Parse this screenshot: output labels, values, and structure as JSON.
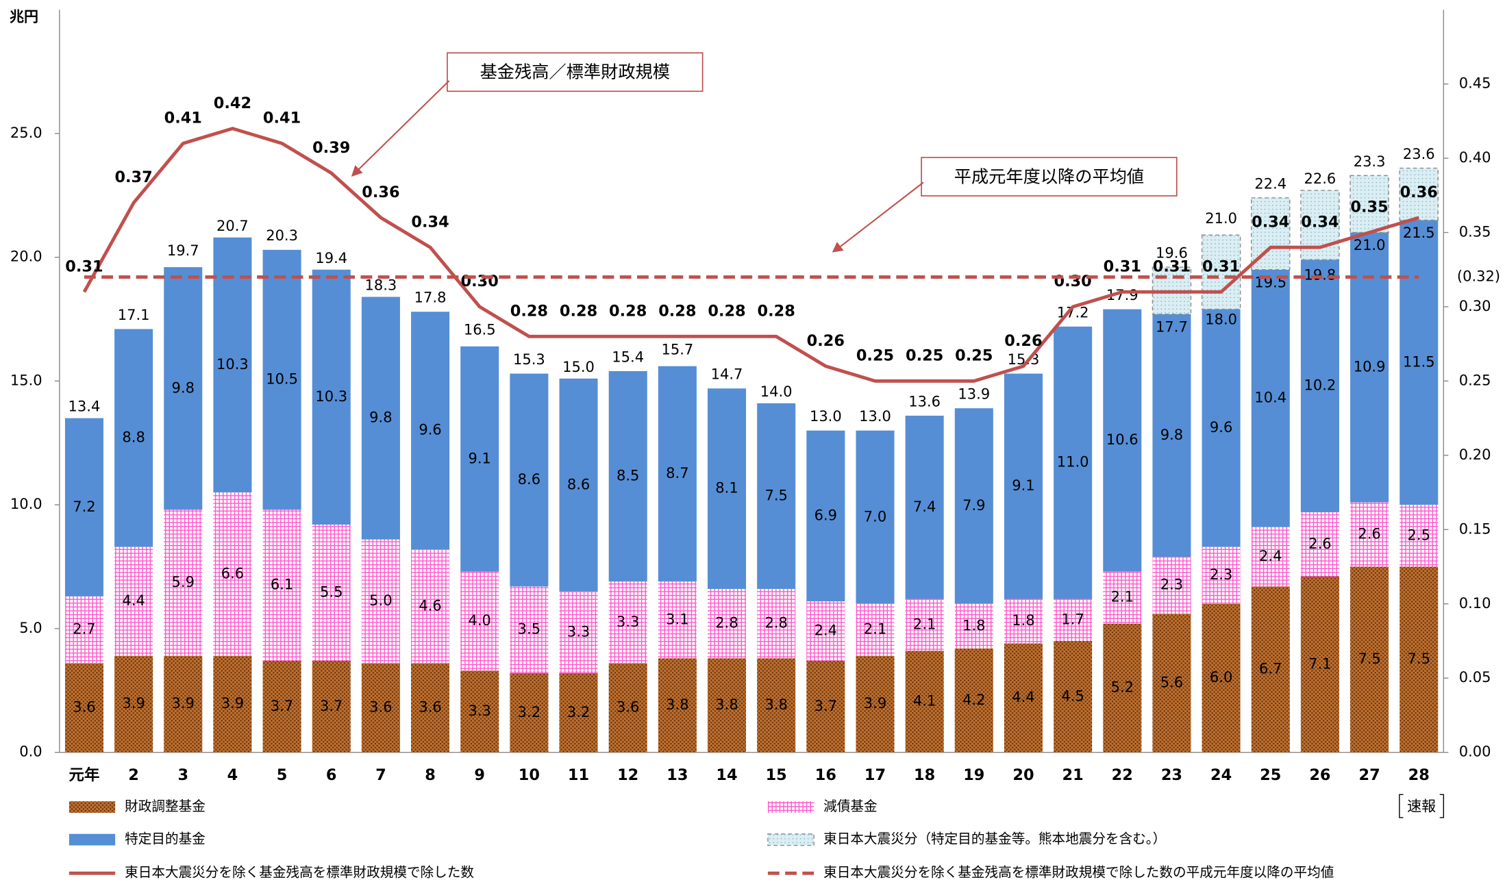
{
  "chart_data": {
    "type": "stacked-bar-line",
    "y_unit": "兆円",
    "categories": [
      "元年",
      "2",
      "3",
      "4",
      "5",
      "6",
      "7",
      "8",
      "9",
      "10",
      "11",
      "12",
      "13",
      "14",
      "15",
      "16",
      "17",
      "18",
      "19",
      "20",
      "21",
      "22",
      "23",
      "24",
      "25",
      "26",
      "27",
      "28"
    ],
    "note": "速報",
    "annotations": [
      "基金残高／標準財政規模",
      "平成元年度以降の平均値"
    ],
    "ylim": [
      0,
      30
    ],
    "yticks": [
      {
        "value": 0,
        "label": "0.0"
      },
      {
        "value": 5,
        "label": "5.0"
      },
      {
        "value": 10,
        "label": "10.0"
      },
      {
        "value": 15,
        "label": "15.0"
      },
      {
        "value": 20,
        "label": "20.0"
      },
      {
        "value": 25,
        "label": "25.0"
      }
    ],
    "y2lim": [
      0,
      0.5
    ],
    "y2ticks": [
      {
        "value": 0,
        "label": "0.00"
      },
      {
        "value": 0.05,
        "label": "0.05"
      },
      {
        "value": 0.1,
        "label": "0.10"
      },
      {
        "value": 0.15,
        "label": "0.15"
      },
      {
        "value": 0.2,
        "label": "0.20"
      },
      {
        "value": 0.25,
        "label": "0.25"
      },
      {
        "value": 0.3,
        "label": "0.30"
      },
      {
        "value": 0.35,
        "label": "0.35"
      },
      {
        "value": 0.4,
        "label": "0.40"
      },
      {
        "value": 0.45,
        "label": "0.45"
      }
    ],
    "series": [
      {
        "name": "財政調整基金",
        "color": "#c0722f",
        "fill_pattern": "dots",
        "values": [
          3.6,
          3.9,
          3.9,
          3.9,
          3.7,
          3.7,
          3.6,
          3.6,
          3.3,
          3.2,
          3.2,
          3.6,
          3.8,
          3.8,
          3.8,
          3.7,
          3.9,
          4.1,
          4.2,
          4.4,
          4.5,
          5.2,
          5.6,
          6.0,
          6.7,
          7.1,
          7.5,
          7.5
        ],
        "value_labels": [
          "3.6",
          "3.9",
          "3.9",
          "3.9",
          "3.7",
          "3.7",
          "3.6",
          "3.6",
          "3.3",
          "3.2",
          "3.2",
          "3.6",
          "3.8",
          "3.8",
          "3.8",
          "3.7",
          "3.9",
          "4.1",
          "4.2",
          "4.4",
          "4.5",
          "5.2",
          "5.6",
          "6.0",
          "6.7",
          "7.1",
          "7.5",
          "7.5"
        ]
      },
      {
        "name": "減債基金",
        "color": "#ff55cc",
        "fill_pattern": "grid",
        "values": [
          2.7,
          4.4,
          5.9,
          6.6,
          6.1,
          5.5,
          5.0,
          4.6,
          4.0,
          3.5,
          3.3,
          3.3,
          3.1,
          2.8,
          2.8,
          2.4,
          2.1,
          2.1,
          1.8,
          1.8,
          1.7,
          2.1,
          2.3,
          2.3,
          2.4,
          2.6,
          2.6,
          2.5
        ],
        "value_labels": [
          "2.7",
          "4.4",
          "5.9",
          "6.6",
          "6.1",
          "5.5",
          "5.0",
          "4.6",
          "4.0",
          "3.5",
          "3.3",
          "3.3",
          "3.1",
          "2.8",
          "2.8",
          "2.4",
          "2.1",
          "2.1",
          "1.8",
          "1.8",
          "1.7",
          "2.1",
          "2.3",
          "2.3",
          "2.4",
          "2.6",
          "2.6",
          "2.5"
        ]
      },
      {
        "name": "特定目的基金",
        "color": "#558ed5",
        "fill_pattern": "solid",
        "values": [
          7.2,
          8.8,
          9.8,
          10.3,
          10.5,
          10.3,
          9.8,
          9.6,
          9.1,
          8.6,
          8.6,
          8.5,
          8.7,
          8.1,
          7.5,
          6.9,
          7.0,
          7.4,
          7.9,
          9.1,
          11.0,
          10.6,
          9.8,
          9.6,
          10.4,
          10.2,
          10.9,
          11.5
        ],
        "value_labels": [
          "7.2",
          "8.8",
          "9.8",
          "10.3",
          "10.5",
          "10.3",
          "9.8",
          "9.6",
          "9.1",
          "8.6",
          "8.6",
          "8.5",
          "8.7",
          "8.1",
          "7.5",
          "6.9",
          "7.0",
          "7.4",
          "7.9",
          "9.1",
          "11.0",
          "10.6",
          "9.8",
          "9.6",
          "10.4",
          "10.2",
          "10.9",
          "11.5"
        ]
      },
      {
        "name": "東日本大震災分（特定目的基金等。熊本地震分を含む。）",
        "color": "#daeef3",
        "fill_pattern": "dots-light",
        "values": [
          null,
          null,
          null,
          null,
          null,
          null,
          null,
          null,
          null,
          null,
          null,
          null,
          null,
          null,
          null,
          null,
          null,
          null,
          null,
          null,
          null,
          null,
          1.9,
          3.0,
          2.9,
          2.8,
          2.3,
          2.1
        ]
      },
      {
        "name": "東日本大震災分を除く基金残高を標準財政規模で除した数",
        "color": "#c0504d",
        "axis": "y2",
        "kind": "line",
        "values": [
          0.31,
          0.37,
          0.41,
          0.42,
          0.41,
          0.39,
          0.36,
          0.34,
          0.3,
          0.28,
          0.28,
          0.28,
          0.28,
          0.28,
          0.28,
          0.26,
          0.25,
          0.25,
          0.25,
          0.26,
          0.3,
          0.31,
          0.31,
          0.31,
          0.34,
          0.34,
          0.35,
          0.36
        ],
        "value_labels": [
          "0.31",
          "0.37",
          "0.41",
          "0.42",
          "0.41",
          "0.39",
          "0.36",
          "0.34",
          "0.30",
          "0.28",
          "0.28",
          "0.28",
          "0.28",
          "0.28",
          "0.28",
          "0.26",
          "0.25",
          "0.25",
          "0.25",
          "0.26",
          "0.30",
          "0.31",
          "0.31",
          "0.31",
          "0.34",
          "0.34",
          "0.35",
          "0.36"
        ]
      },
      {
        "name": "東日本大震災分を除く基金残高を標準財政規模で除した数の平成元年度以降の平均値",
        "color": "#c0504d",
        "axis": "y2",
        "kind": "dashed-line",
        "value": 0.32,
        "label": "(0.32)"
      }
    ],
    "totals": {
      "values": [
        13.4,
        17.1,
        19.7,
        20.7,
        20.3,
        19.4,
        18.3,
        17.8,
        16.5,
        15.3,
        15.0,
        15.4,
        15.7,
        14.7,
        14.0,
        13.0,
        13.0,
        13.6,
        13.9,
        15.3,
        17.2,
        17.9,
        17.7,
        18.0,
        19.5,
        19.8,
        21.0,
        21.5
      ],
      "value_labels": [
        "13.4",
        "17.1",
        "19.7",
        "20.7",
        "20.3",
        "19.4",
        "18.3",
        "17.8",
        "16.5",
        "15.3",
        "15.0",
        "15.4",
        "15.7",
        "14.7",
        "14.0",
        "13.0",
        "13.0",
        "13.6",
        "13.9",
        "15.3",
        "17.2",
        "17.9",
        "17.7",
        "18.0",
        "19.5",
        "19.8",
        "21.0",
        "21.5"
      ]
    },
    "totals_with_disaster": {
      "values": [
        null,
        null,
        null,
        null,
        null,
        null,
        null,
        null,
        null,
        null,
        null,
        null,
        null,
        null,
        null,
        null,
        null,
        null,
        null,
        null,
        null,
        null,
        19.6,
        21.0,
        22.4,
        22.6,
        23.3,
        23.6
      ],
      "value_labels": [
        null,
        null,
        null,
        null,
        null,
        null,
        null,
        null,
        null,
        null,
        null,
        null,
        null,
        null,
        null,
        null,
        null,
        null,
        null,
        null,
        null,
        null,
        "19.6",
        "21.0",
        "22.4",
        "22.6",
        "23.3",
        "23.6"
      ]
    }
  }
}
